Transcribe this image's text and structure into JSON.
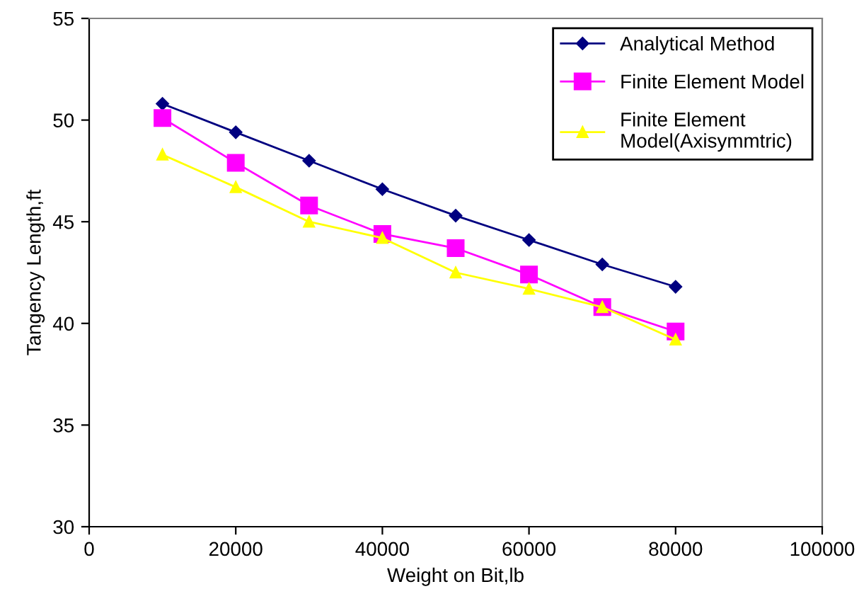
{
  "chart_data": {
    "type": "line",
    "xlabel": "Weight on Bit,lb",
    "ylabel": "Tangency Length,ft",
    "x": [
      10000,
      20000,
      30000,
      40000,
      50000,
      60000,
      70000,
      80000
    ],
    "series": [
      {
        "name": "Analytical Method",
        "color": "#000080",
        "marker": "diamond",
        "values": [
          50.8,
          49.4,
          48.0,
          46.6,
          45.3,
          44.1,
          42.9,
          41.8
        ]
      },
      {
        "name": "Finite Element Model",
        "color": "#ff00ff",
        "marker": "square",
        "values": [
          50.1,
          47.9,
          45.8,
          44.4,
          43.7,
          42.4,
          40.8,
          39.6
        ]
      },
      {
        "name": "Finite Element\nModel(Axisymmtric)",
        "color": "#ffff00",
        "marker": "triangle",
        "values": [
          48.3,
          46.7,
          45.0,
          44.2,
          42.5,
          41.7,
          40.8,
          39.2
        ]
      }
    ],
    "xlim": [
      0,
      100000
    ],
    "xticks": [
      0,
      20000,
      40000,
      60000,
      80000,
      100000
    ],
    "ylim": [
      30,
      55
    ],
    "yticks": [
      30,
      35,
      40,
      45,
      50,
      55
    ],
    "grid": false,
    "legend": "top right",
    "line_style": "solid"
  }
}
